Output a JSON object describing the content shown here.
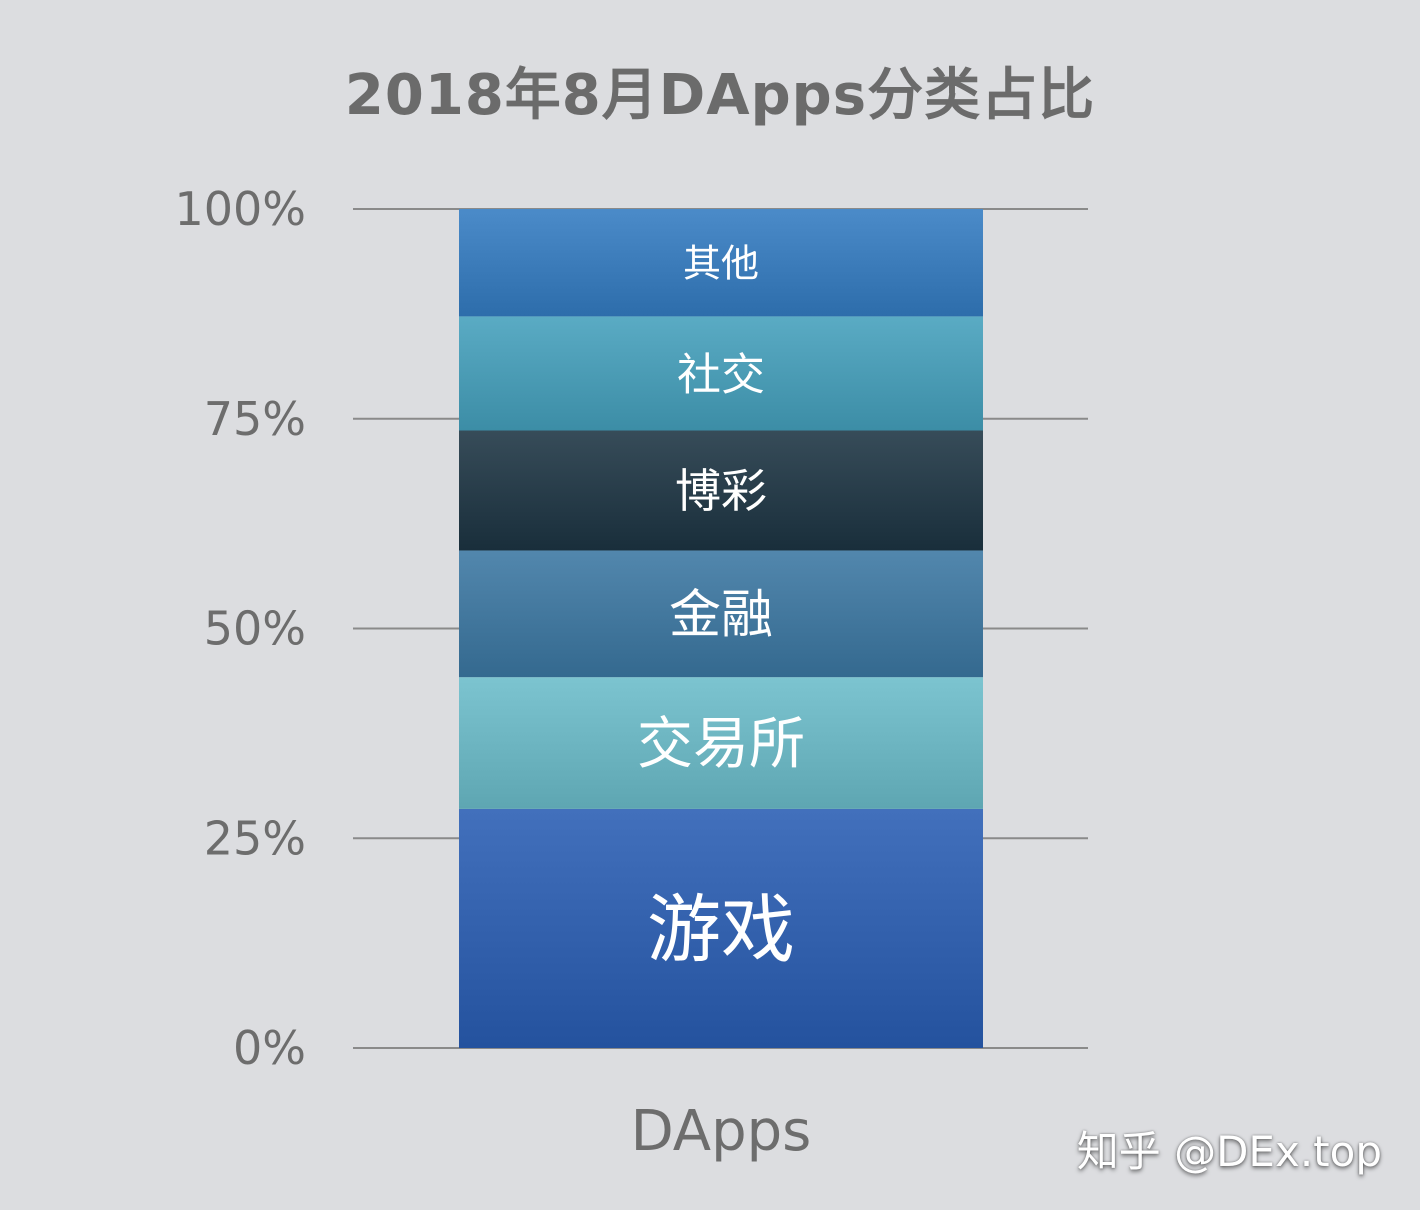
{
  "chart_data": {
    "type": "bar",
    "stacked": true,
    "title": "2018年8月DApps分类占比",
    "categories": [
      "DApps"
    ],
    "yticks": [
      "0%",
      "25%",
      "50%",
      "75%",
      "100%"
    ],
    "ylim": [
      0,
      100
    ],
    "grid": true,
    "legend": "none (segment labels inside bar)",
    "series": [
      {
        "name": "游戏",
        "values": [
          28.5
        ],
        "color": "#3a68b4"
      },
      {
        "name": "交易所",
        "values": [
          15.7
        ],
        "color": "#74bcc8"
      },
      {
        "name": "金融",
        "values": [
          15.1
        ],
        "color": "#4a7fa5"
      },
      {
        "name": "博彩",
        "values": [
          14.3
        ],
        "color": "#2f4451"
      },
      {
        "name": "社交",
        "values": [
          13.6
        ],
        "color": "#52a3bc"
      },
      {
        "name": "其他",
        "values": [
          12.8
        ],
        "color": "#4383c1"
      }
    ]
  },
  "watermark": "知乎 @DEx.top"
}
